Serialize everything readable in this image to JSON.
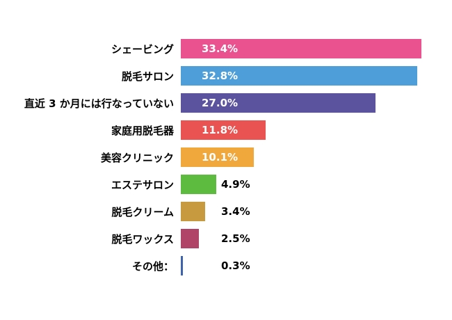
{
  "chart_data": {
    "type": "bar",
    "orientation": "horizontal",
    "title": "",
    "xlabel": "",
    "ylabel": "",
    "grid": false,
    "legend": false,
    "xlim": [
      0,
      33.4
    ],
    "label_inside_threshold": 8,
    "categories": [
      "シェービング",
      "脱毛サロン",
      "直近 3 か月には行なっていない",
      "家庭用脱毛器",
      "美容クリニック",
      "エステサロン",
      "脱毛クリーム",
      "脱毛ワックス",
      "その他："
    ],
    "values": [
      33.4,
      32.8,
      27.0,
      11.8,
      10.1,
      4.9,
      3.4,
      2.5,
      0.3
    ],
    "value_labels": [
      "33.4%",
      "32.8%",
      "27.0%",
      "11.8%",
      "10.1%",
      "4.9%",
      "3.4%",
      "2.5%",
      "0.3%"
    ],
    "colors": [
      "#E9518F",
      "#4E9FD9",
      "#5C539E",
      "#E95352",
      "#F0A73C",
      "#5DBB3F",
      "#C89A3F",
      "#AF4368",
      "#3F62AD"
    ]
  }
}
